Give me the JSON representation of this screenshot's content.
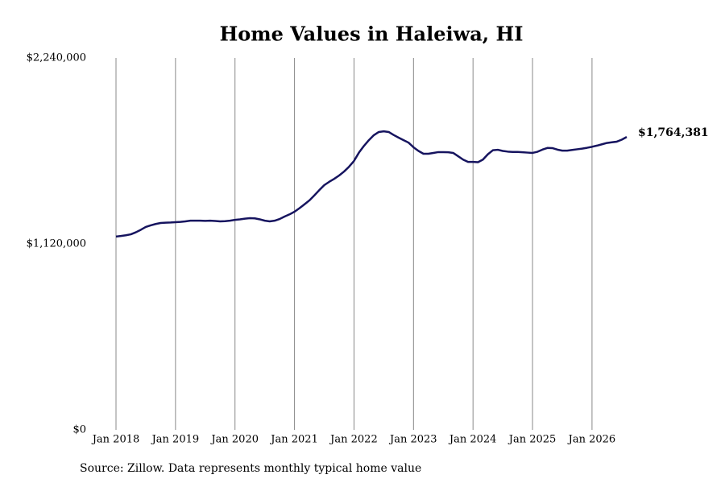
{
  "chart_data": {
    "type": "line",
    "title": "Home Values in Haleiwa, HI",
    "source": "Source: Zillow. Data represents monthly typical home value",
    "x": [
      "2018-01",
      "2018-02",
      "2018-03",
      "2018-04",
      "2018-05",
      "2018-06",
      "2018-07",
      "2018-08",
      "2018-09",
      "2018-10",
      "2018-11",
      "2018-12",
      "2019-01",
      "2019-02",
      "2019-03",
      "2019-04",
      "2019-05",
      "2019-06",
      "2019-07",
      "2019-08",
      "2019-09",
      "2019-10",
      "2019-11",
      "2019-12",
      "2020-01",
      "2020-02",
      "2020-03",
      "2020-04",
      "2020-05",
      "2020-06",
      "2020-07",
      "2020-08",
      "2020-09",
      "2020-10",
      "2020-11",
      "2020-12",
      "2021-01",
      "2021-02",
      "2021-03",
      "2021-04",
      "2021-05",
      "2021-06",
      "2021-07",
      "2021-08",
      "2021-09",
      "2021-10",
      "2021-11",
      "2021-12",
      "2022-01",
      "2022-02",
      "2022-03",
      "2022-04",
      "2022-05",
      "2022-06",
      "2022-07",
      "2022-08",
      "2022-09",
      "2022-10",
      "2022-11",
      "2022-12",
      "2023-01",
      "2023-02",
      "2023-03",
      "2023-04",
      "2023-05",
      "2023-06",
      "2023-07",
      "2023-08",
      "2023-09",
      "2023-10",
      "2023-11",
      "2023-12",
      "2024-01",
      "2024-02",
      "2024-03",
      "2024-04",
      "2024-05",
      "2024-06",
      "2024-07",
      "2024-08",
      "2024-09",
      "2024-10",
      "2024-11",
      "2024-12",
      "2025-01",
      "2025-02",
      "2025-03",
      "2025-04",
      "2025-05",
      "2025-06",
      "2025-07",
      "2025-08",
      "2025-09",
      "2025-10",
      "2025-11",
      "2025-12",
      "2026-01",
      "2026-02",
      "2026-03",
      "2026-04",
      "2026-05",
      "2026-06",
      "2026-07",
      "2026-08"
    ],
    "series": [
      {
        "name": "Home value",
        "color": "#16145f",
        "end_label": "$1,764,381",
        "values": [
          1164000,
          1168000,
          1172000,
          1178000,
          1190000,
          1205000,
          1222000,
          1232000,
          1240000,
          1246000,
          1248000,
          1249000,
          1251000,
          1253000,
          1256000,
          1260000,
          1260000,
          1260000,
          1259000,
          1260000,
          1258000,
          1256000,
          1257000,
          1260000,
          1265000,
          1268000,
          1272000,
          1275000,
          1274000,
          1268000,
          1260000,
          1256000,
          1260000,
          1270000,
          1285000,
          1298000,
          1314000,
          1335000,
          1358000,
          1382000,
          1412000,
          1444000,
          1474000,
          1494000,
          1512000,
          1532000,
          1556000,
          1585000,
          1620000,
          1670000,
          1710000,
          1745000,
          1775000,
          1794000,
          1798000,
          1794000,
          1776000,
          1760000,
          1745000,
          1730000,
          1702000,
          1680000,
          1663000,
          1663000,
          1668000,
          1673000,
          1673000,
          1672000,
          1668000,
          1648000,
          1628000,
          1614000,
          1614000,
          1612000,
          1628000,
          1660000,
          1684000,
          1687000,
          1680000,
          1676000,
          1674000,
          1674000,
          1672000,
          1670000,
          1668000,
          1675000,
          1688000,
          1698000,
          1697000,
          1688000,
          1682000,
          1682000,
          1686000,
          1690000,
          1694000,
          1699000,
          1705000,
          1712000,
          1720000,
          1728000,
          1732000,
          1736000,
          1748000,
          1764381
        ]
      }
    ],
    "xlim": [
      "2018-01",
      "2026-08"
    ],
    "xticks": [
      {
        "value": "2018-01",
        "label": "Jan 2018"
      },
      {
        "value": "2019-01",
        "label": "Jan 2019"
      },
      {
        "value": "2020-01",
        "label": "Jan 2020"
      },
      {
        "value": "2021-01",
        "label": "Jan 2021"
      },
      {
        "value": "2022-01",
        "label": "Jan 2022"
      },
      {
        "value": "2023-01",
        "label": "Jan 2023"
      },
      {
        "value": "2024-01",
        "label": "Jan 2024"
      },
      {
        "value": "2025-01",
        "label": "Jan 2025"
      },
      {
        "value": "2026-01",
        "label": "Jan 2026"
      }
    ],
    "ylim": [
      0,
      2240000
    ],
    "yticks": [
      {
        "value": 0,
        "label": "$0"
      },
      {
        "value": 1120000,
        "label": "$1,120,000"
      },
      {
        "value": 2240000,
        "label": "$2,240,000"
      }
    ],
    "grid": "x"
  }
}
